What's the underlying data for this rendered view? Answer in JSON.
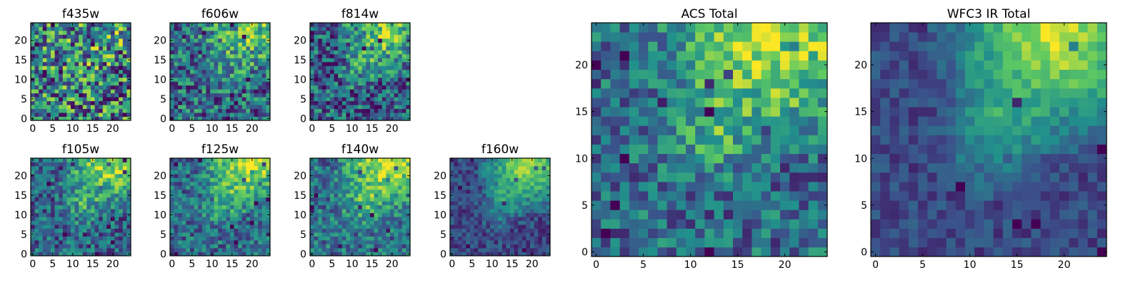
{
  "colormap": [
    "#440154",
    "#3b528b",
    "#21918c",
    "#5ec962",
    "#fde725"
  ],
  "chart_data": [
    {
      "type": "heatmap",
      "title": "f435w",
      "size": 25,
      "xticks": [
        0,
        5,
        10,
        15,
        20
      ],
      "yticks": [
        0,
        5,
        10,
        15,
        20
      ],
      "noise": 0.55,
      "peak": 0.15,
      "base": 0.45
    },
    {
      "type": "heatmap",
      "title": "f606w",
      "size": 25,
      "xticks": [
        0,
        5,
        10,
        15,
        20
      ],
      "yticks": [
        0,
        5,
        10,
        15,
        20
      ],
      "noise": 0.4,
      "peak": 0.5,
      "base": 0.35
    },
    {
      "type": "heatmap",
      "title": "f814w",
      "size": 25,
      "xticks": [
        0,
        5,
        10,
        15,
        20
      ],
      "yticks": [
        0,
        5,
        10,
        15,
        20
      ],
      "noise": 0.38,
      "peak": 0.6,
      "base": 0.3
    },
    {
      "type": "heatmap",
      "title": "f105w",
      "size": 25,
      "xticks": [
        0,
        5,
        10,
        15,
        20
      ],
      "yticks": [
        0,
        5,
        10,
        15,
        20
      ],
      "noise": 0.3,
      "peak": 0.65,
      "base": 0.32
    },
    {
      "type": "heatmap",
      "title": "f125w",
      "size": 25,
      "xticks": [
        0,
        5,
        10,
        15,
        20
      ],
      "yticks": [
        0,
        5,
        10,
        15,
        20
      ],
      "noise": 0.28,
      "peak": 0.7,
      "base": 0.35
    },
    {
      "type": "heatmap",
      "title": "f140w",
      "size": 25,
      "xticks": [
        0,
        5,
        10,
        15,
        20
      ],
      "yticks": [
        0,
        5,
        10,
        15,
        20
      ],
      "noise": 0.28,
      "peak": 0.7,
      "base": 0.38
    },
    {
      "type": "heatmap",
      "title": "f160w",
      "size": 25,
      "xticks": [
        0,
        5,
        10,
        15,
        20
      ],
      "yticks": [
        0,
        5,
        10,
        15,
        20
      ],
      "noise": 0.18,
      "peak": 0.8,
      "base": 0.22
    },
    {
      "type": "heatmap",
      "title": "ACS Total",
      "size": 25,
      "xticks": [
        0,
        5,
        10,
        15,
        20
      ],
      "yticks": [
        0,
        5,
        10,
        15,
        20
      ],
      "noise": 0.3,
      "peak": 0.7,
      "base": 0.35
    },
    {
      "type": "heatmap",
      "title": "WFC3 IR Total",
      "size": 25,
      "xticks": [
        0,
        5,
        10,
        15,
        20
      ],
      "yticks": [
        0,
        5,
        10,
        15,
        20
      ],
      "noise": 0.14,
      "peak": 0.85,
      "base": 0.22
    }
  ]
}
